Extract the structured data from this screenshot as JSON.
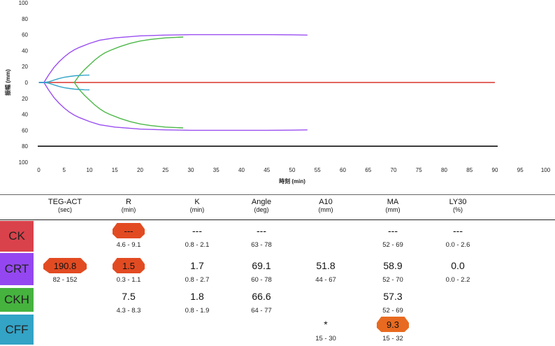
{
  "chart_data": {
    "type": "line",
    "xlabel": "時刻 (min)",
    "ylabel": "振幅 (mm)",
    "xlim": [
      0,
      100
    ],
    "ylim": [
      -100,
      100
    ],
    "xticks": [
      "0",
      "5",
      "10",
      "15",
      "20",
      "25",
      "30",
      "35",
      "40",
      "45",
      "50",
      "55",
      "60",
      "65",
      "70",
      "75",
      "80",
      "85",
      "90",
      "95",
      "100"
    ],
    "yticks": [
      "100",
      "80",
      "60",
      "40",
      "20",
      "0",
      "20",
      "40",
      "60",
      "80",
      "100"
    ],
    "series": [
      {
        "name": "CK",
        "color": "#e0504a",
        "x": [
          0,
          1,
          3,
          90
        ],
        "y": [
          0,
          0,
          0,
          0
        ]
      },
      {
        "name": "CRT",
        "color": "#9a4ef0",
        "x": [
          0,
          1,
          2,
          3,
          4,
          5,
          6,
          7,
          8,
          10,
          12,
          15,
          20,
          25,
          30,
          35,
          40,
          45,
          50,
          53
        ],
        "y": [
          0,
          0,
          10,
          19,
          26,
          32,
          37,
          41,
          44,
          49,
          53,
          56,
          58.5,
          59.5,
          60,
          60,
          60,
          60,
          59.8,
          59.5
        ]
      },
      {
        "name": "CKH",
        "color": "#4cb848",
        "x": [
          7,
          8,
          9,
          10,
          11,
          12,
          13,
          14,
          16,
          18,
          20,
          22,
          25,
          28.5
        ],
        "y": [
          0,
          9,
          16,
          22,
          28,
          33,
          37,
          40,
          45,
          49,
          52,
          54,
          56,
          57
        ]
      },
      {
        "name": "CFF",
        "color": "#35a6c8",
        "x": [
          0,
          1,
          2,
          3,
          4,
          5,
          6,
          7,
          8,
          9,
          10
        ],
        "y": [
          0,
          0,
          1,
          3,
          5,
          6.5,
          7.5,
          8.3,
          8.8,
          9.1,
          9.3
        ]
      }
    ]
  },
  "table": {
    "headers": [
      {
        "name": "TEG-ACT",
        "unit": "(sec)"
      },
      {
        "name": "R",
        "unit": "(min)"
      },
      {
        "name": "K",
        "unit": "(min)"
      },
      {
        "name": "Angle",
        "unit": "(deg)"
      },
      {
        "name": "A10",
        "unit": "(mm)"
      },
      {
        "name": "MA",
        "unit": "(mm)"
      },
      {
        "name": "LY30",
        "unit": "(%)"
      }
    ],
    "rows": [
      {
        "label": "CK",
        "color": "#d9424b",
        "cells": [
          {
            "value": "",
            "range": ""
          },
          {
            "value": "---",
            "range": "4.6 - 9.1",
            "flag": "r"
          },
          {
            "value": "---",
            "range": "0.8 - 2.1"
          },
          {
            "value": "---",
            "range": "63 - 78"
          },
          {
            "value": "",
            "range": ""
          },
          {
            "value": "---",
            "range": "52 - 69"
          },
          {
            "value": "---",
            "range": "0.0 - 2.6"
          }
        ]
      },
      {
        "label": "CRT",
        "color": "#9447f0",
        "cells": [
          {
            "value": "190.8",
            "range": "82 - 152",
            "flag": "r"
          },
          {
            "value": "1.5",
            "range": "0.3 - 1.1",
            "flag": "r"
          },
          {
            "value": "1.7",
            "range": "0.8 - 2.7"
          },
          {
            "value": "69.1",
            "range": "60 - 78"
          },
          {
            "value": "51.8",
            "range": "44 - 67"
          },
          {
            "value": "58.9",
            "range": "52 - 70"
          },
          {
            "value": "0.0",
            "range": "0.0 - 2.2"
          }
        ]
      },
      {
        "label": "CKH",
        "color": "#45b33e",
        "cells": [
          {
            "value": "",
            "range": ""
          },
          {
            "value": "7.5",
            "range": "4.3 - 8.3"
          },
          {
            "value": "1.8",
            "range": "0.8 - 1.9"
          },
          {
            "value": "66.6",
            "range": "64 - 77"
          },
          {
            "value": "",
            "range": ""
          },
          {
            "value": "57.3",
            "range": "52 - 69"
          },
          {
            "value": "",
            "range": ""
          }
        ]
      },
      {
        "label": "CFF",
        "color": "#33a3c6",
        "cells": [
          {
            "value": "",
            "range": ""
          },
          {
            "value": "",
            "range": ""
          },
          {
            "value": "",
            "range": ""
          },
          {
            "value": "",
            "range": ""
          },
          {
            "value": "*",
            "range": "15 - 30"
          },
          {
            "value": "9.3",
            "range": "15 - 32",
            "flag": "o"
          },
          {
            "value": "",
            "range": ""
          }
        ]
      }
    ]
  }
}
